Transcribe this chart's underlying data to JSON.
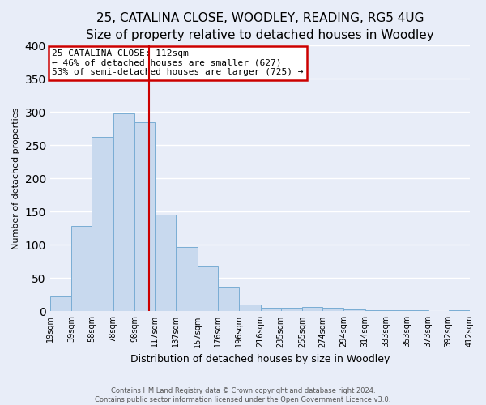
{
  "title": "25, CATALINA CLOSE, WOODLEY, READING, RG5 4UG",
  "subtitle": "Size of property relative to detached houses in Woodley",
  "xlabel": "Distribution of detached houses by size in Woodley",
  "ylabel": "Number of detached properties",
  "bin_edges": [
    19,
    39,
    58,
    78,
    98,
    117,
    137,
    157,
    176,
    196,
    216,
    235,
    255,
    274,
    294,
    314,
    333,
    353,
    373,
    392,
    412
  ],
  "bar_heights": [
    22,
    128,
    263,
    298,
    284,
    145,
    97,
    68,
    37,
    10,
    5,
    5,
    6,
    5,
    3,
    2,
    2,
    1,
    0,
    2
  ],
  "bar_color": "#c8d9ee",
  "bar_edgecolor": "#7aadd4",
  "property_line_x": 112,
  "property_line_color": "#cc0000",
  "annotation_title": "25 CATALINA CLOSE: 112sqm",
  "annotation_line1": "← 46% of detached houses are smaller (627)",
  "annotation_line2": "53% of semi-detached houses are larger (725) →",
  "annotation_box_edgecolor": "#cc0000",
  "annotation_box_facecolor": "#ffffff",
  "ylim": [
    0,
    400
  ],
  "yticks": [
    0,
    50,
    100,
    150,
    200,
    250,
    300,
    350,
    400
  ],
  "tick_labels": [
    "19sqm",
    "39sqm",
    "58sqm",
    "78sqm",
    "98sqm",
    "117sqm",
    "137sqm",
    "157sqm",
    "176sqm",
    "196sqm",
    "216sqm",
    "235sqm",
    "255sqm",
    "274sqm",
    "294sqm",
    "314sqm",
    "333sqm",
    "353sqm",
    "373sqm",
    "392sqm",
    "412sqm"
  ],
  "footer1": "Contains HM Land Registry data © Crown copyright and database right 2024.",
  "footer2": "Contains public sector information licensed under the Open Government Licence v3.0.",
  "fig_facecolor": "#e8edf8",
  "axes_facecolor": "#e8edf8",
  "grid_color": "#ffffff",
  "title_fontsize": 11,
  "subtitle_fontsize": 9,
  "ylabel_fontsize": 8,
  "xlabel_fontsize": 9,
  "tick_fontsize": 7,
  "annotation_fontsize": 8,
  "footer_fontsize": 6
}
